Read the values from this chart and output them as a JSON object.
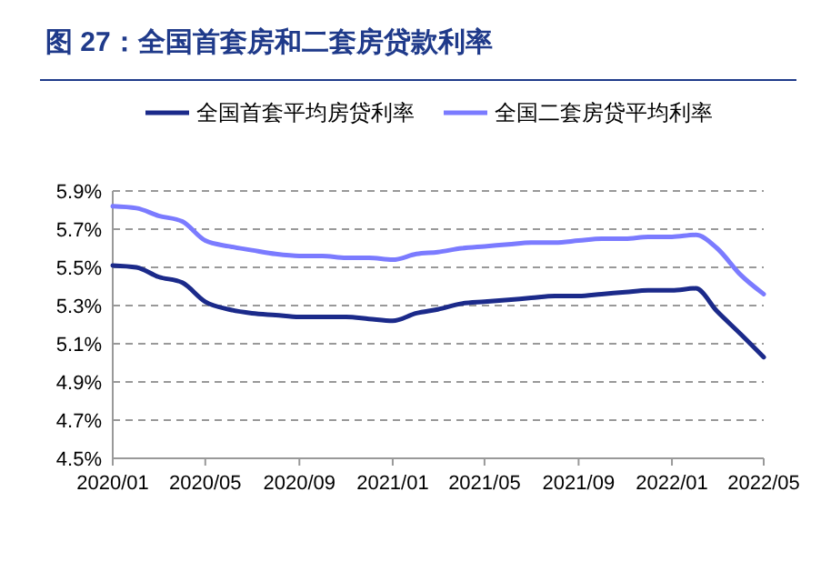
{
  "chart_data": {
    "type": "line",
    "title": "图 27：全国首套房和二套房贷款利率",
    "x": [
      "2020-01",
      "2020-02",
      "2020-03",
      "2020-04",
      "2020-05",
      "2020-06",
      "2020-07",
      "2020-08",
      "2020-09",
      "2020-10",
      "2020-11",
      "2020-12",
      "2021-01",
      "2021-02",
      "2021-03",
      "2021-04",
      "2021-05",
      "2021-06",
      "2021-07",
      "2021-08",
      "2021-09",
      "2021-10",
      "2021-11",
      "2021-12",
      "2022-01",
      "2022-02",
      "2022-03",
      "2022-04",
      "2022-05"
    ],
    "series": [
      {
        "name": "全国首套平均房贷利率",
        "color": "#1b2a8a",
        "values": [
          5.51,
          5.5,
          5.45,
          5.42,
          5.32,
          5.28,
          5.26,
          5.25,
          5.24,
          5.24,
          5.24,
          5.23,
          5.22,
          5.26,
          5.28,
          5.31,
          5.32,
          5.33,
          5.34,
          5.35,
          5.35,
          5.36,
          5.37,
          5.38,
          5.38,
          5.39,
          5.27,
          5.15,
          5.03
        ]
      },
      {
        "name": "全国二套房贷平均利率",
        "color": "#7b7bff",
        "values": [
          5.82,
          5.81,
          5.77,
          5.74,
          5.64,
          5.61,
          5.59,
          5.57,
          5.56,
          5.56,
          5.55,
          5.55,
          5.54,
          5.57,
          5.58,
          5.6,
          5.61,
          5.62,
          5.63,
          5.63,
          5.64,
          5.65,
          5.65,
          5.66,
          5.66,
          5.67,
          5.6,
          5.46,
          5.36
        ]
      }
    ],
    "xlim": [
      "2020-01",
      "2022-05"
    ],
    "xticks": [
      {
        "value": "2020-01",
        "label": "2020/01"
      },
      {
        "value": "2020-05",
        "label": "2020/05"
      },
      {
        "value": "2020-09",
        "label": "2020/09"
      },
      {
        "value": "2021-01",
        "label": "2021/01"
      },
      {
        "value": "2021-05",
        "label": "2021/05"
      },
      {
        "value": "2021-09",
        "label": "2021/09"
      },
      {
        "value": "2022-01",
        "label": "2022/01"
      },
      {
        "value": "2022-05",
        "label": "2022/05"
      }
    ],
    "ylim": [
      4.5,
      5.9
    ],
    "yticks": [
      {
        "value": 4.5,
        "label": "4.5%"
      },
      {
        "value": 4.7,
        "label": "4.7%"
      },
      {
        "value": 4.9,
        "label": "4.9%"
      },
      {
        "value": 5.1,
        "label": "5.1%"
      },
      {
        "value": 5.3,
        "label": "5.3%"
      },
      {
        "value": 5.5,
        "label": "5.5%"
      },
      {
        "value": 5.7,
        "label": "5.7%"
      },
      {
        "value": 5.9,
        "label": "5.9%"
      }
    ],
    "grid": "y",
    "legend": "top",
    "marker": "none",
    "line_style": "solid"
  }
}
